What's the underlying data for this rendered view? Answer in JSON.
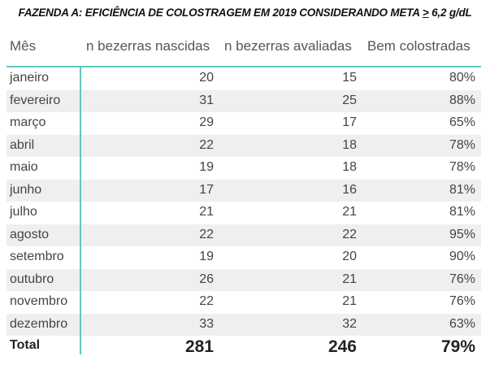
{
  "title": {
    "main": "FAZENDA A: EFICIÊNCIA DE COLOSTRAGEM EM 2019 CONSIDERANDO META ",
    "symbol": ">",
    "value": " 6,2 g/dL"
  },
  "columns": [
    "Mês",
    "n bezerras nascidas",
    "n bezerras avaliadas",
    "Bem colostradas"
  ],
  "rows": [
    {
      "month": "janeiro",
      "born": "20",
      "evaluated": "15",
      "good": "80%"
    },
    {
      "month": "fevereiro",
      "born": "31",
      "evaluated": "25",
      "good": "88%"
    },
    {
      "month": "março",
      "born": "29",
      "evaluated": "17",
      "good": "65%"
    },
    {
      "month": "abril",
      "born": "22",
      "evaluated": "18",
      "good": "78%"
    },
    {
      "month": "maio",
      "born": "19",
      "evaluated": "18",
      "good": "78%"
    },
    {
      "month": "junho",
      "born": "17",
      "evaluated": "16",
      "good": "81%"
    },
    {
      "month": "julho",
      "born": "21",
      "evaluated": "21",
      "good": "81%"
    },
    {
      "month": "agosto",
      "born": "22",
      "evaluated": "22",
      "good": "95%"
    },
    {
      "month": "setembro",
      "born": "19",
      "evaluated": "20",
      "good": "90%"
    },
    {
      "month": "outubro",
      "born": "26",
      "evaluated": "21",
      "good": "76%"
    },
    {
      "month": "novembro",
      "born": "22",
      "evaluated": "21",
      "good": "76%"
    },
    {
      "month": "dezembro",
      "born": "33",
      "evaluated": "32",
      "good": "63%"
    }
  ],
  "total": {
    "label": "Total",
    "born": "281",
    "evaluated": "246",
    "good": "79%"
  },
  "colors": {
    "accent": "#5fc8bf",
    "alt_row": "#efefef"
  }
}
